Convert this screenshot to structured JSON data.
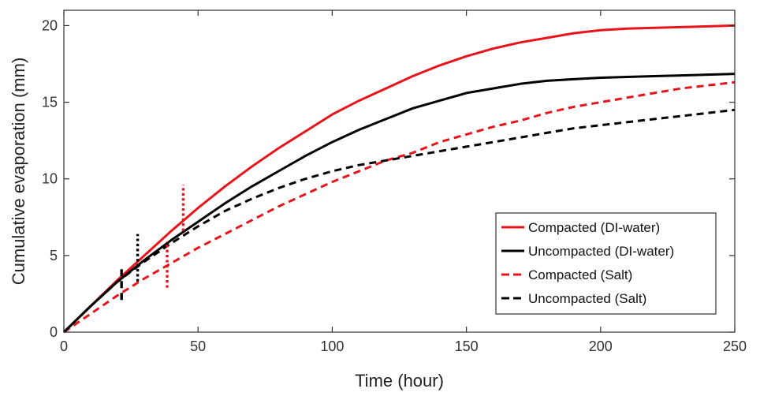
{
  "chart_data": {
    "type": "line",
    "title": "",
    "xlabel": "Time (hour)",
    "ylabel": "Cumulative evaporation (mm)",
    "xlim": [
      0,
      250
    ],
    "ylim": [
      0,
      21
    ],
    "xticks": [
      0,
      50,
      100,
      150,
      200,
      250
    ],
    "yticks": [
      0,
      5,
      10,
      15,
      20
    ],
    "grid": false,
    "legend_position": "right",
    "series": [
      {
        "name": "Compacted (DI-water)",
        "color": "#e8141b",
        "style": "solid",
        "x": [
          0,
          10,
          20,
          30,
          40,
          50,
          60,
          70,
          80,
          90,
          100,
          110,
          120,
          130,
          140,
          150,
          160,
          170,
          180,
          190,
          200,
          210,
          220,
          230,
          240,
          250
        ],
        "y": [
          0,
          1.7,
          3.4,
          5.0,
          6.6,
          8.1,
          9.5,
          10.8,
          12.0,
          13.1,
          14.2,
          15.1,
          15.9,
          16.7,
          17.4,
          18.0,
          18.5,
          18.9,
          19.2,
          19.5,
          19.7,
          19.8,
          19.85,
          19.9,
          19.95,
          20.0
        ]
      },
      {
        "name": "Uncompacted (DI-water)",
        "color": "#000000",
        "style": "solid",
        "x": [
          0,
          10,
          20,
          30,
          40,
          50,
          60,
          70,
          80,
          90,
          100,
          110,
          120,
          130,
          140,
          150,
          160,
          170,
          180,
          190,
          200,
          210,
          220,
          230,
          240,
          250
        ],
        "y": [
          0,
          1.7,
          3.3,
          4.7,
          6.0,
          7.2,
          8.4,
          9.5,
          10.5,
          11.5,
          12.4,
          13.2,
          13.9,
          14.6,
          15.1,
          15.6,
          15.9,
          16.2,
          16.4,
          16.5,
          16.6,
          16.65,
          16.7,
          16.75,
          16.8,
          16.85
        ]
      },
      {
        "name": "Compacted (Salt)",
        "color": "#e8141b",
        "style": "dashed",
        "x": [
          0,
          10,
          20,
          30,
          40,
          50,
          60,
          70,
          80,
          90,
          100,
          110,
          120,
          130,
          140,
          150,
          160,
          170,
          180,
          190,
          200,
          210,
          220,
          230,
          240,
          250
        ],
        "y": [
          0,
          1.2,
          2.4,
          3.5,
          4.5,
          5.5,
          6.4,
          7.3,
          8.2,
          9.0,
          9.8,
          10.5,
          11.2,
          11.7,
          12.4,
          12.9,
          13.4,
          13.8,
          14.3,
          14.7,
          15.0,
          15.3,
          15.6,
          15.9,
          16.1,
          16.3
        ]
      },
      {
        "name": "Uncompacted (Salt)",
        "color": "#000000",
        "style": "dashed",
        "x": [
          0,
          10,
          20,
          30,
          40,
          50,
          60,
          70,
          80,
          90,
          100,
          110,
          120,
          130,
          140,
          150,
          160,
          170,
          180,
          190,
          200,
          210,
          220,
          230,
          240,
          250
        ],
        "y": [
          0,
          1.7,
          3.3,
          4.6,
          5.8,
          6.9,
          7.9,
          8.7,
          9.4,
          10.0,
          10.5,
          10.9,
          11.2,
          11.5,
          11.8,
          12.1,
          12.4,
          12.7,
          13.0,
          13.3,
          13.5,
          13.7,
          13.9,
          14.1,
          14.3,
          14.5
        ]
      }
    ],
    "markers": [
      {
        "color": "#000000",
        "style": "dashed",
        "x": 21.5,
        "y_range": [
          2.1,
          4.4
        ]
      },
      {
        "color": "#000000",
        "style": "dotted",
        "x": 27.5,
        "y_range": [
          3.3,
          6.4
        ]
      },
      {
        "color": "#e8141b",
        "style": "dotted",
        "x": 38.5,
        "y_range": [
          2.9,
          5.9
        ]
      },
      {
        "color": "#e8141b",
        "style": "dotted",
        "x": 44.5,
        "y_range": [
          6.6,
          9.6
        ]
      }
    ]
  }
}
